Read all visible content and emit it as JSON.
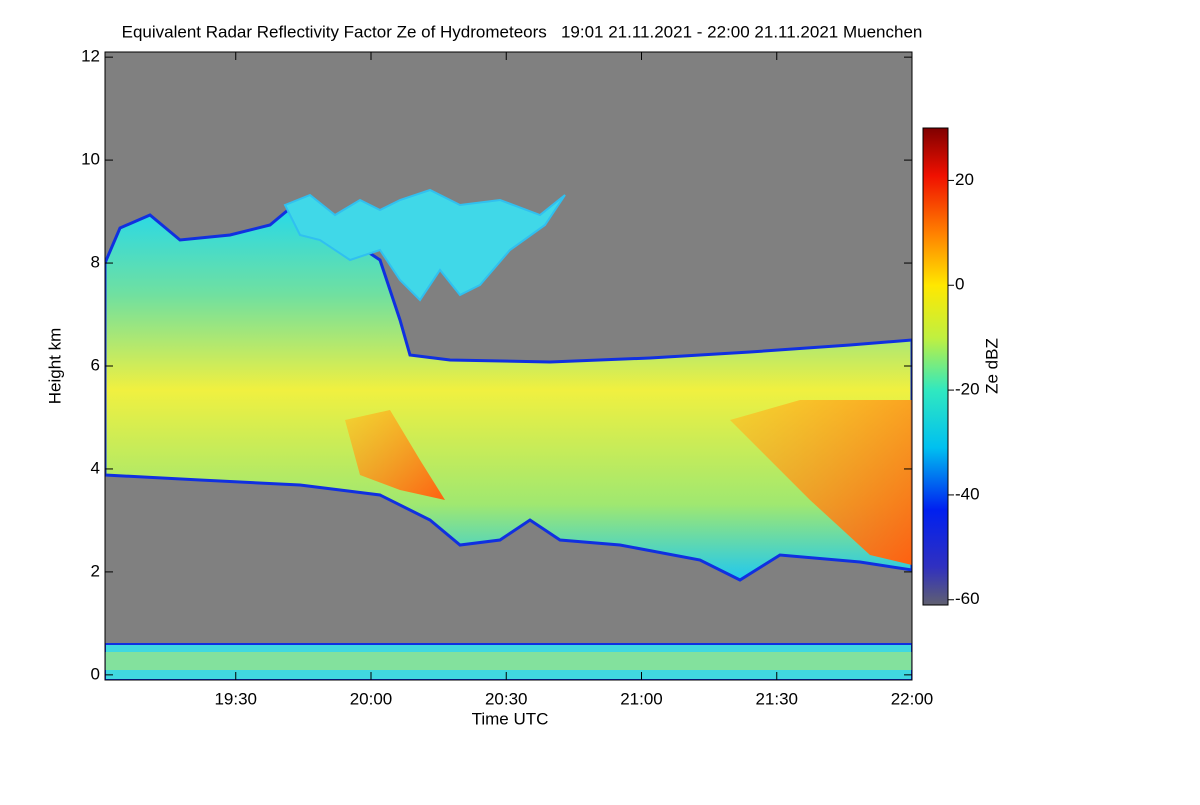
{
  "chart_data": {
    "type": "heatmap",
    "title": "Equivalent Radar Reflectivity Factor Ze of Hydrometeors   19:01 21.11.2021 - 22:00 21.11.2021 Muenchen",
    "x_label": "Time UTC",
    "y_label": "Height km",
    "xlim": [
      1141,
      1320
    ],
    "xticks": [
      {
        "value": 1170,
        "label": "19:30"
      },
      {
        "value": 1200,
        "label": "20:00"
      },
      {
        "value": 1230,
        "label": "20:30"
      },
      {
        "value": 1260,
        "label": "21:00"
      },
      {
        "value": 1290,
        "label": "21:30"
      },
      {
        "value": 1320,
        "label": "22:00"
      }
    ],
    "ylim": [
      -0.1,
      12.1
    ],
    "yticks": [
      0,
      2,
      4,
      6,
      8,
      10,
      12
    ],
    "colorbar": {
      "label": "Ze dBZ",
      "lim": [
        -61,
        30
      ],
      "ticks": [
        -60,
        -40,
        -20,
        0,
        20
      ]
    }
  }
}
